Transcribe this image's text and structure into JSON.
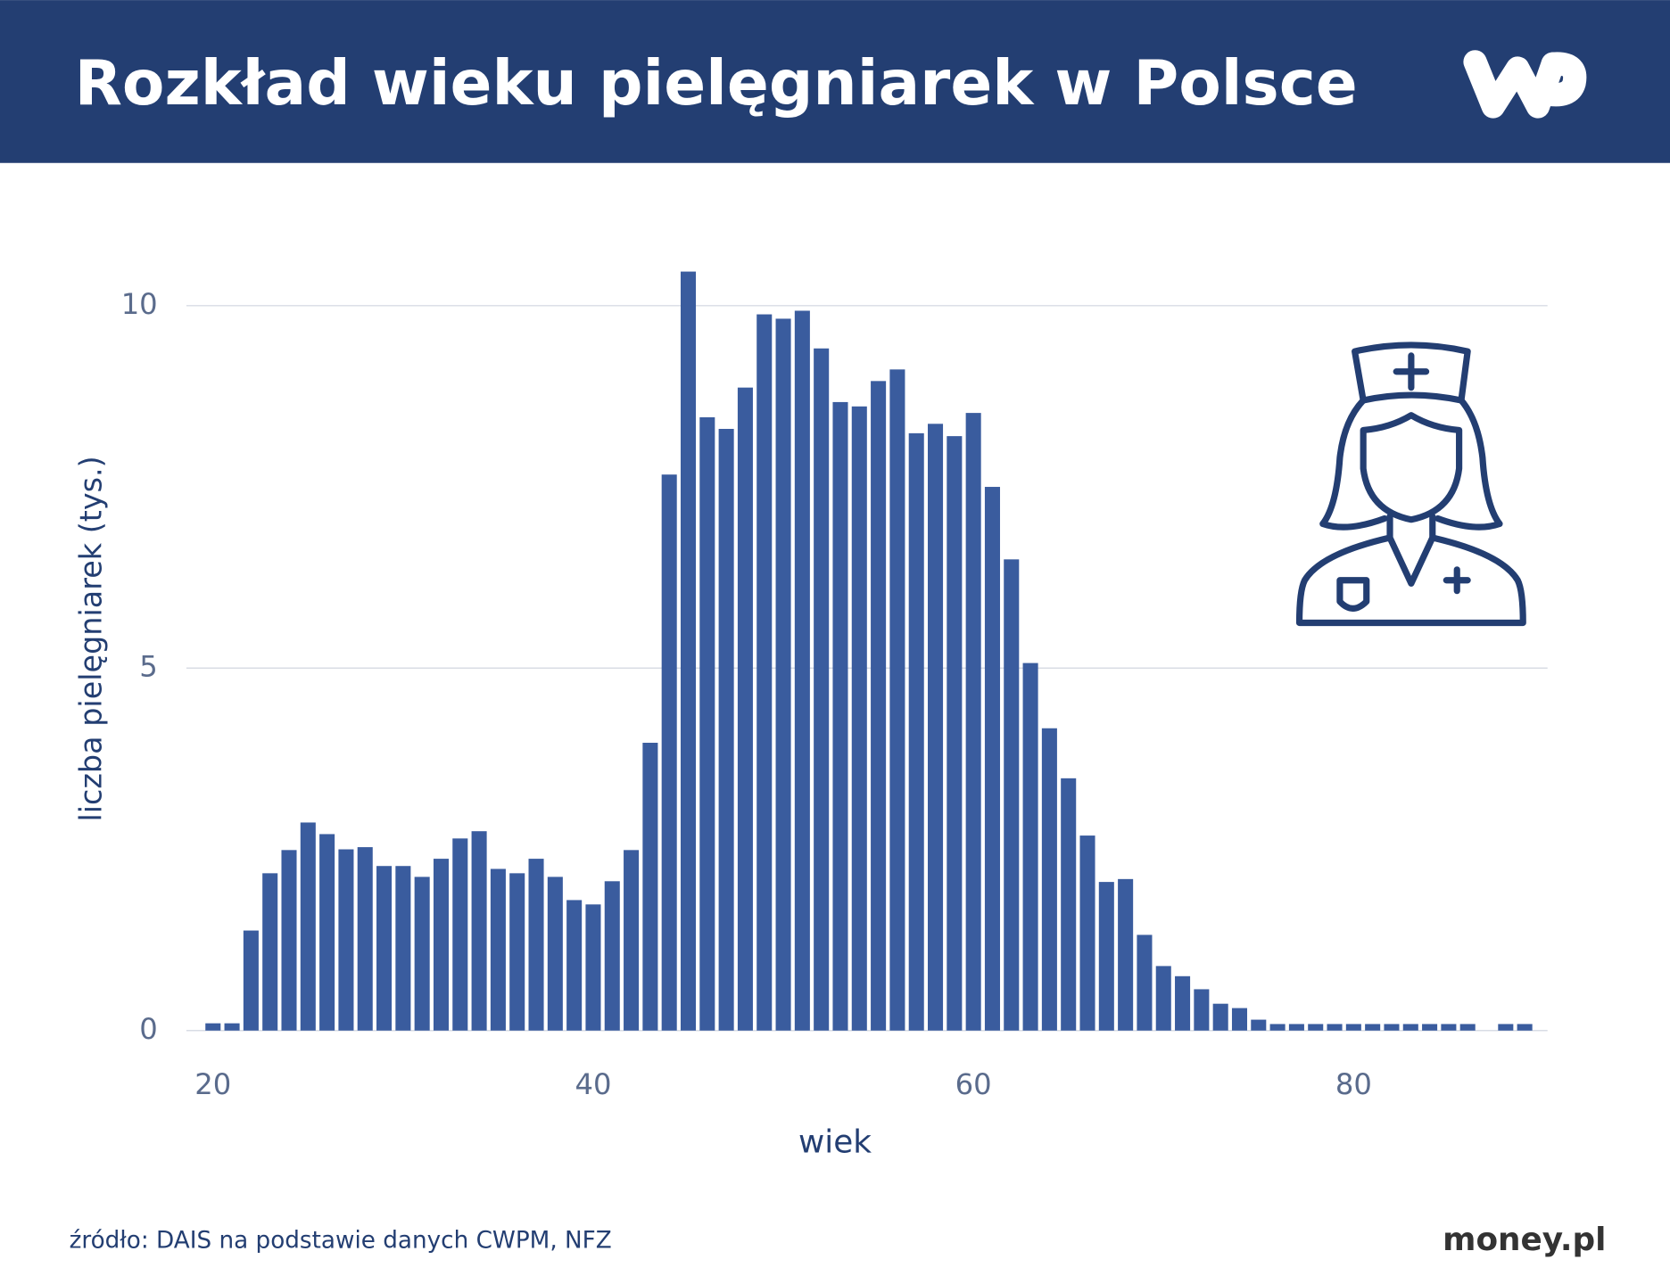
{
  "chart_data": {
    "type": "bar",
    "title": "Rozkład wieku pielęgniarek w Polsce",
    "x_label": "wiek",
    "y_label": "liczba pielęgniarek (tys.)",
    "source": "źródło: DAIS na podstawie danych CWPM, NFZ",
    "brand": "money.pl",
    "x": [
      20,
      21,
      22,
      23,
      24,
      25,
      26,
      27,
      28,
      29,
      30,
      31,
      32,
      33,
      34,
      35,
      36,
      37,
      38,
      39,
      40,
      41,
      42,
      43,
      44,
      45,
      46,
      47,
      48,
      49,
      50,
      51,
      52,
      53,
      54,
      55,
      56,
      57,
      58,
      59,
      60,
      61,
      62,
      63,
      64,
      65,
      66,
      67,
      68,
      69,
      70,
      71,
      72,
      73,
      74,
      75,
      76,
      77,
      78,
      79,
      80,
      81,
      82,
      83,
      84,
      85,
      86,
      87,
      88,
      89
    ],
    "values": [
      0.1,
      0.1,
      1.38,
      2.17,
      2.49,
      2.87,
      2.71,
      2.5,
      2.53,
      2.27,
      2.27,
      2.12,
      2.37,
      2.65,
      2.75,
      2.23,
      2.17,
      2.37,
      2.12,
      1.8,
      1.74,
      2.06,
      2.49,
      3.97,
      7.67,
      10.47,
      8.46,
      8.3,
      8.87,
      9.88,
      9.82,
      9.93,
      9.41,
      8.67,
      8.61,
      8.96,
      9.12,
      8.24,
      8.37,
      8.2,
      8.52,
      7.5,
      6.5,
      5.07,
      4.17,
      3.48,
      2.69,
      2.05,
      2.09,
      1.32,
      0.89,
      0.75,
      0.57,
      0.37,
      0.31,
      0.15,
      0.09,
      0.09,
      0.09,
      0.09,
      0.09,
      0.09,
      0.09,
      0.09,
      0.09,
      0.09,
      0.09,
      null,
      0.09,
      0.09
    ],
    "color": "#3a5c9e",
    "xlim": [
      18.6,
      90.2
    ],
    "xticks": [
      20,
      40,
      60,
      80
    ],
    "ylim": [
      0,
      10.5
    ],
    "yticks": [
      0,
      5,
      10
    ],
    "grid": true
  }
}
